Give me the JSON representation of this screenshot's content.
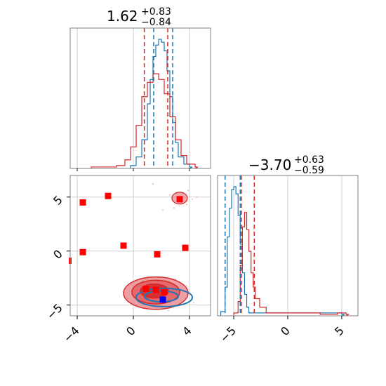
{
  "chart_data": {
    "type": "corner",
    "colors": {
      "blue": "#1f77b4",
      "red": "#d62728",
      "red_fill": "#e8878a",
      "red_fill_dark": "#e05a5e",
      "marker_red": "#ff0000",
      "marker_blue": "#0000ff"
    },
    "param1": {
      "title": {
        "value": "1.62",
        "plus": "+0.83",
        "minus": "−0.84"
      },
      "quantile_lines_red": [
        0.78,
        2.45
      ],
      "quantile_lines_blue": [
        1.45,
        2.8
      ],
      "xlim": [
        -4.5,
        5.5
      ],
      "blue_hist": {
        "x": [
          -0.2,
          0.2,
          0.6,
          1.0,
          1.2,
          1.4,
          1.6,
          1.8,
          2.0,
          2.2,
          2.4,
          2.6,
          2.8,
          3.0,
          3.2,
          3.6,
          4.0
        ],
        "y": [
          0.02,
          0.08,
          0.2,
          0.45,
          0.62,
          0.78,
          0.86,
          0.9,
          0.88,
          0.82,
          0.68,
          0.5,
          0.32,
          0.18,
          0.08,
          0.03,
          0.01
        ]
      },
      "red_hist": {
        "x": [
          -3.0,
          -2.2,
          -1.2,
          -0.6,
          -0.2,
          0.2,
          0.6,
          1.0,
          1.4,
          1.8,
          2.2,
          2.6,
          3.0,
          3.4,
          3.8,
          4.4
        ],
        "y": [
          0.01,
          0.01,
          0.02,
          0.06,
          0.15,
          0.3,
          0.5,
          0.6,
          0.66,
          0.62,
          0.52,
          0.36,
          0.2,
          0.09,
          0.03,
          0.01
        ]
      }
    },
    "param2": {
      "title": {
        "value": "−3.70",
        "plus": "+0.63",
        "minus": "−0.59"
      },
      "quantile_lines_red": [
        -4.3,
        -3.1
      ],
      "quantile_lines_blue": [
        -5.8,
        -4.4
      ],
      "xlim": [
        -6.5,
        6.5
      ],
      "x_ticks": [
        "−5",
        "0",
        "5"
      ],
      "x_tick_values": [
        -5,
        0,
        5
      ],
      "blue_hist": {
        "x": [
          -6.2,
          -5.8,
          -5.6,
          -5.4,
          -5.2,
          -5.0,
          -4.8,
          -4.6,
          -4.4,
          -4.2,
          -4.0,
          -3.8,
          -3.6,
          4.0,
          5.0
        ],
        "y": [
          0.03,
          0.2,
          0.55,
          0.75,
          0.88,
          0.9,
          0.85,
          0.7,
          0.5,
          0.3,
          0.15,
          0.06,
          0.02,
          0.02,
          0.01
        ]
      },
      "red_hist": {
        "x": [
          -5.0,
          -4.6,
          -4.4,
          -4.2,
          -4.0,
          -3.8,
          -3.6,
          -3.4,
          -3.2,
          -3.0,
          -2.6,
          -2.0,
          3.0,
          4.6,
          5.4
        ],
        "y": [
          0.02,
          0.1,
          0.35,
          0.62,
          0.72,
          0.6,
          0.45,
          0.3,
          0.2,
          0.12,
          0.06,
          0.02,
          0.01,
          0.02,
          0.01
        ]
      }
    },
    "joint": {
      "xlim": [
        -4.5,
        5.5
      ],
      "ylim": [
        -6.0,
        7.0
      ],
      "x_ticks": [
        "−4",
        "0",
        "4"
      ],
      "x_tick_values": [
        -4,
        0,
        4
      ],
      "y_ticks": [
        "5",
        "0",
        "−5"
      ],
      "y_tick_values": [
        5,
        0,
        -5
      ],
      "red_markers": [
        [
          -3.6,
          4.5
        ],
        [
          -1.8,
          5.1
        ],
        [
          3.3,
          4.8
        ],
        [
          -3.6,
          -0.1
        ],
        [
          -0.7,
          0.5
        ],
        [
          1.7,
          -0.3
        ],
        [
          3.7,
          0.3
        ],
        [
          0.9,
          -3.5
        ],
        [
          1.6,
          -3.6
        ],
        [
          2.2,
          -3.8
        ]
      ],
      "blue_markers": [
        [
          2.1,
          -4.5
        ]
      ],
      "red_contours": [
        {
          "cx": 1.6,
          "cy": -3.9,
          "rx": 2.3,
          "ry": 1.5,
          "level": "outer"
        },
        {
          "cx": 1.6,
          "cy": -3.8,
          "rx": 1.7,
          "ry": 1.1,
          "level": "middle"
        },
        {
          "cx": 1.5,
          "cy": -3.7,
          "rx": 1.0,
          "ry": 0.65,
          "level": "inner"
        }
      ],
      "red_blob": {
        "cx": 3.3,
        "cy": 4.9,
        "rx": 0.55,
        "ry": 0.55
      },
      "blue_contours": [
        {
          "cx": 2.2,
          "cy": -4.3,
          "rx": 2.0,
          "ry": 0.85
        },
        {
          "cx": 2.0,
          "cy": -4.2,
          "rx": 1.2,
          "ry": 0.5
        }
      ]
    }
  }
}
